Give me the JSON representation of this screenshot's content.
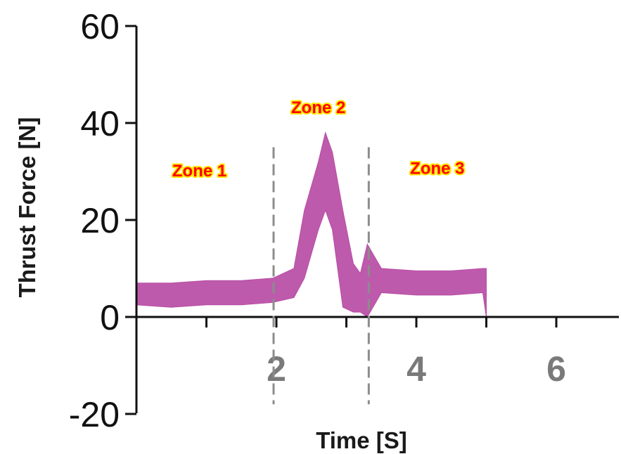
{
  "chart_data": {
    "type": "line",
    "xlabel": "Time [S]",
    "ylabel": "Thrust Force [N]",
    "xlim": [
      0,
      6.9
    ],
    "ylim": [
      -20,
      60
    ],
    "x_ticks": [
      2,
      4,
      6
    ],
    "x_tick_labels": [
      "2",
      "4",
      "6"
    ],
    "y_ticks": [
      60,
      40,
      20,
      0,
      -20
    ],
    "y_tick_labels": [
      "60",
      "40",
      "20",
      "0",
      "-20"
    ],
    "x_minor_ticks": [
      1,
      2,
      3,
      4,
      5,
      6
    ],
    "grid": false,
    "legend": "none",
    "series_color": "#b84ca5",
    "divider_color": "#8c8c8c",
    "zone_text_color": "#ff0000",
    "zone_outline_color": "#ffe600",
    "dividers": [
      1.96,
      3.32
    ],
    "annotations": [
      {
        "text": "Zone 1",
        "x": 0.9,
        "y": 29
      },
      {
        "text": "Zone 2",
        "x": 2.6,
        "y": 42
      },
      {
        "text": "Zone 3",
        "x": 4.3,
        "y": 29.5
      }
    ],
    "series": [
      {
        "x": [
          0.0,
          0.5,
          1.0,
          1.5,
          1.95,
          2.25,
          2.4,
          2.6,
          2.7,
          2.8,
          2.95,
          3.1,
          3.2,
          3.3,
          3.5,
          4.0,
          4.5,
          4.95,
          5.0
        ],
        "upper": [
          7,
          7,
          7.5,
          7.5,
          8,
          10,
          22,
          32,
          38,
          34,
          22,
          11,
          9,
          15,
          10,
          9.5,
          9.5,
          10,
          10
        ],
        "lower": [
          2.5,
          2,
          2.5,
          2.5,
          3,
          4,
          8,
          18,
          22,
          18,
          2,
          1,
          1,
          0,
          5,
          4.5,
          4.5,
          5,
          0
        ]
      }
    ]
  }
}
